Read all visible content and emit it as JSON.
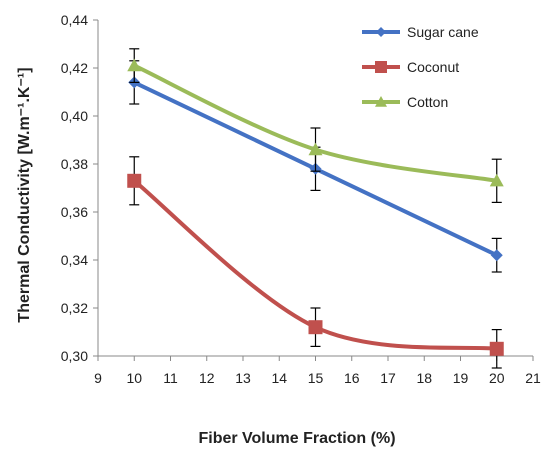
{
  "chart_data": {
    "type": "line",
    "xlabel": "Fiber Volume Fraction (%)",
    "ylabel": "Thermal Conductivity [W.m⁻¹.K⁻¹]",
    "xlim": [
      9,
      21
    ],
    "ylim": [
      0.3,
      0.44
    ],
    "x_ticks": [
      "9",
      "10",
      "11",
      "12",
      "13",
      "14",
      "15",
      "16",
      "17",
      "18",
      "19",
      "20",
      "21"
    ],
    "y_ticks": [
      "0,30",
      "0,32",
      "0,34",
      "0,36",
      "0,38",
      "0,40",
      "0,42",
      "0,44"
    ],
    "x": [
      10,
      15,
      20
    ],
    "legend_position": "top-right",
    "grid": false,
    "smoothed": true,
    "series": [
      {
        "name": "Sugar cane",
        "marker": "diamond",
        "color": "#4472C4",
        "values": [
          0.414,
          0.378,
          0.342
        ],
        "errors": [
          0.009,
          0.009,
          0.007
        ]
      },
      {
        "name": "Coconut",
        "marker": "square",
        "color": "#C0504D",
        "values": [
          0.373,
          0.312,
          0.303
        ],
        "errors": [
          0.01,
          0.008,
          0.008
        ]
      },
      {
        "name": "Cotton",
        "marker": "triangle",
        "color": "#9BBB59",
        "values": [
          0.421,
          0.386,
          0.373
        ],
        "errors": [
          0.007,
          0.009,
          0.009
        ]
      }
    ]
  }
}
